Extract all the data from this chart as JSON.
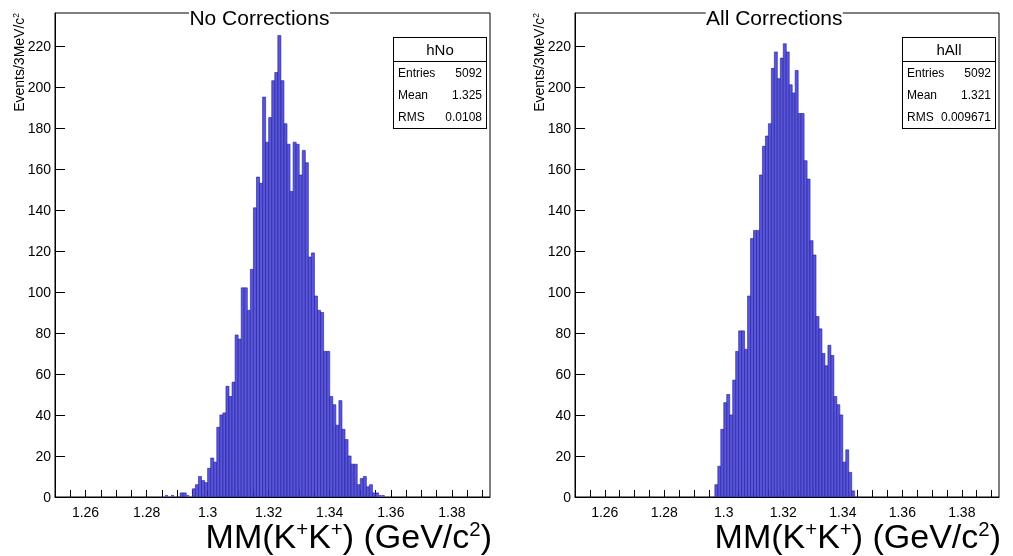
{
  "chart_data": [
    {
      "type": "histogram",
      "title": "No Corrections",
      "xlabel": "MM(K$^{+}$K$^{+}$) (GeV/c$^{2}$)",
      "ylabel": "Events/3MeV/c$^{2}$",
      "color": "#5a55d9",
      "bins": [
        1.286,
        1.287,
        1.288,
        1.289,
        1.29,
        1.291,
        1.292,
        1.293,
        1.294,
        1.295,
        1.296,
        1.297,
        1.298,
        1.299,
        1.3,
        1.301,
        1.302,
        1.303,
        1.304,
        1.305,
        1.306,
        1.307,
        1.308,
        1.309,
        1.31,
        1.311,
        1.312,
        1.313,
        1.314,
        1.315,
        1.316,
        1.317,
        1.318,
        1.319,
        1.32,
        1.321,
        1.322,
        1.323,
        1.324,
        1.325,
        1.326,
        1.327,
        1.328,
        1.329,
        1.33,
        1.331,
        1.332,
        1.333,
        1.334,
        1.335,
        1.336,
        1.337,
        1.338,
        1.339,
        1.34,
        1.341,
        1.342,
        1.343,
        1.344,
        1.345,
        1.346,
        1.347,
        1.348,
        1.349,
        1.35,
        1.351,
        1.352,
        1.353,
        1.354,
        1.355,
        1.356,
        1.357,
        1.358
      ],
      "values": [
        1,
        0,
        1,
        0,
        0,
        2,
        2,
        1,
        0,
        4,
        6,
        10,
        8,
        7,
        14,
        19,
        17,
        34,
        40,
        41,
        54,
        49,
        56,
        79,
        77,
        102,
        102,
        91,
        111,
        141,
        156,
        153,
        195,
        173,
        185,
        203,
        207,
        225,
        203,
        182,
        172,
        149,
        173,
        172,
        157,
        169,
        163,
        117,
        119,
        98,
        91,
        90,
        71,
        71,
        49,
        45,
        35,
        47,
        33,
        28,
        20,
        16,
        16,
        6,
        9,
        10,
        5,
        6,
        2,
        2,
        1,
        1
      ],
      "xlim": [
        1.25,
        1.3925
      ],
      "xticks": [
        {
          "value": 1.255,
          "label": null
        },
        1.26,
        {
          "value": 1.265,
          "label": null
        },
        {
          "value": 1.27,
          "label": null
        },
        {
          "value": 1.275,
          "label": null
        },
        1.28,
        {
          "value": 1.285,
          "label": null
        },
        {
          "value": 1.29,
          "label": null
        },
        {
          "value": 1.295,
          "label": null
        },
        1.3,
        {
          "value": 1.305,
          "label": null
        },
        {
          "value": 1.31,
          "label": null
        },
        {
          "value": 1.315,
          "label": null
        },
        1.32,
        {
          "value": 1.325,
          "label": null
        },
        {
          "value": 1.33,
          "label": null
        },
        {
          "value": 1.335,
          "label": null
        },
        1.34,
        {
          "value": 1.345,
          "label": null
        },
        {
          "value": 1.35,
          "label": null
        },
        {
          "value": 1.355,
          "label": null
        },
        1.36,
        {
          "value": 1.365,
          "label": null
        },
        {
          "value": 1.37,
          "label": null
        },
        {
          "value": 1.375,
          "label": null
        },
        1.38,
        {
          "value": 1.385,
          "label": null
        },
        {
          "value": 1.39,
          "label": null
        }
      ],
      "ylim": [
        0,
        236
      ],
      "yticks": [
        0,
        20,
        40,
        60,
        80,
        100,
        120,
        140,
        160,
        180,
        200,
        220
      ],
      "annotations": [
        "hNo",
        "Entries 5092",
        "Mean 1.325",
        "RMS 0.0108"
      ]
    },
    {
      "type": "histogram",
      "title": "All Corrections",
      "xlabel": "MM(K$^{+}$K$^{+}$) (GeV/c$^{2}$)",
      "ylabel": "Events/3MeV/c$^{2}$",
      "color": "#5a55d9",
      "bins": [
        1.297,
        1.298,
        1.299,
        1.3,
        1.301,
        1.302,
        1.303,
        1.304,
        1.305,
        1.306,
        1.307,
        1.308,
        1.309,
        1.31,
        1.311,
        1.312,
        1.313,
        1.314,
        1.315,
        1.316,
        1.317,
        1.318,
        1.319,
        1.32,
        1.321,
        1.322,
        1.323,
        1.324,
        1.325,
        1.326,
        1.327,
        1.328,
        1.329,
        1.33,
        1.331,
        1.332,
        1.333,
        1.334,
        1.335,
        1.336,
        1.337,
        1.338,
        1.339,
        1.34,
        1.341,
        1.342,
        1.343,
        1.344
      ],
      "values": [
        6,
        15,
        33,
        46,
        50,
        40,
        57,
        71,
        81,
        81,
        72,
        98,
        126,
        130,
        130,
        157,
        171,
        176,
        182,
        209,
        217,
        204,
        214,
        221,
        217,
        201,
        197,
        208,
        187,
        187,
        164,
        155,
        125,
        118,
        88,
        82,
        70,
        64,
        74,
        69,
        49,
        45,
        40,
        17,
        23,
        12,
        3
      ],
      "xlim": [
        1.25,
        1.3925
      ],
      "xticks": [
        {
          "value": 1.255,
          "label": null
        },
        1.26,
        {
          "value": 1.265,
          "label": null
        },
        {
          "value": 1.27,
          "label": null
        },
        {
          "value": 1.275,
          "label": null
        },
        1.28,
        {
          "value": 1.285,
          "label": null
        },
        {
          "value": 1.29,
          "label": null
        },
        {
          "value": 1.295,
          "label": null
        },
        1.3,
        {
          "value": 1.305,
          "label": null
        },
        {
          "value": 1.31,
          "label": null
        },
        {
          "value": 1.315,
          "label": null
        },
        1.32,
        {
          "value": 1.325,
          "label": null
        },
        {
          "value": 1.33,
          "label": null
        },
        {
          "value": 1.335,
          "label": null
        },
        1.34,
        {
          "value": 1.345,
          "label": null
        },
        {
          "value": 1.35,
          "label": null
        },
        {
          "value": 1.355,
          "label": null
        },
        1.36,
        {
          "value": 1.365,
          "label": null
        },
        {
          "value": 1.37,
          "label": null
        },
        {
          "value": 1.375,
          "label": null
        },
        1.38,
        {
          "value": 1.385,
          "label": null
        },
        {
          "value": 1.39,
          "label": null
        }
      ],
      "ylim": [
        0,
        236
      ],
      "yticks": [
        0,
        20,
        40,
        60,
        80,
        100,
        120,
        140,
        160,
        180,
        200,
        220
      ],
      "annotations": [
        "hAll",
        "Entries 5092",
        "Mean 1.321",
        "RMS 0.009671"
      ]
    }
  ]
}
